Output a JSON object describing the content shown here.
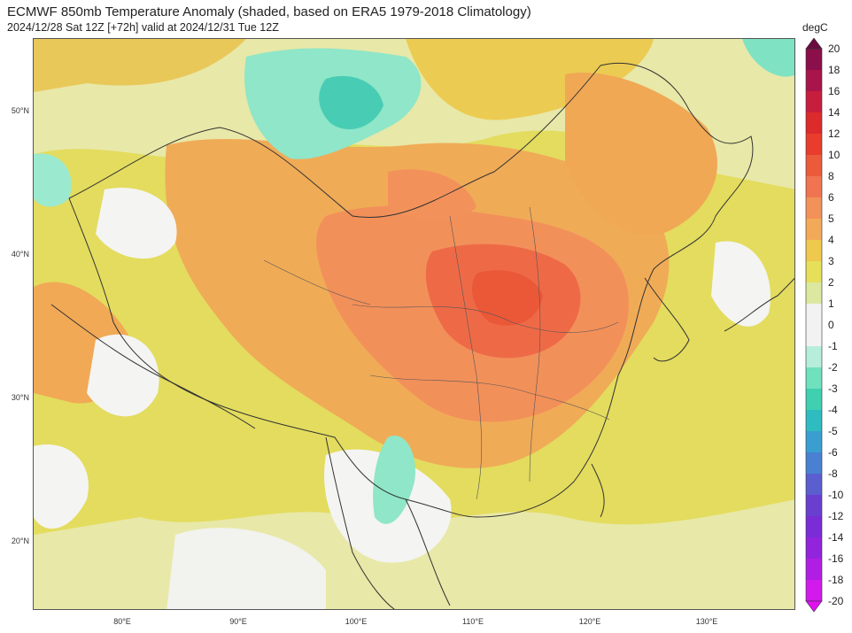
{
  "header": {
    "title": "ECMWF 850mb Temperature Anomaly (shaded, based on ERA5 1979-2018 Climatology)",
    "subtitle": "2024/12/28 Sat 12Z [+72h] valid at 2024/12/31 Tue 12Z"
  },
  "map": {
    "lat_labels": [
      "50°N",
      "40°N",
      "30°N",
      "20°N"
    ],
    "lon_labels": [
      "80°E",
      "90°E",
      "100°E",
      "110°E",
      "120°E",
      "130°E"
    ]
  },
  "colorbar": {
    "unit": "degC",
    "levels": [
      20,
      18,
      16,
      14,
      12,
      10,
      8,
      6,
      5,
      4,
      3,
      2,
      1,
      0,
      -1,
      -2,
      -3,
      -4,
      -5,
      -6,
      -8,
      -10,
      -12,
      -14,
      -16,
      -18,
      -20
    ],
    "colors": [
      "#8a0f4a",
      "#a8154a",
      "#c71e3e",
      "#dd2a2a",
      "#e83d2c",
      "#ec5a3c",
      "#f07452",
      "#f2925a",
      "#f3aa58",
      "#efc84e",
      "#e6df5a",
      "#dce8a0",
      "#f2f2f2",
      "#f2f2f2",
      "#b6eedb",
      "#6fe1bd",
      "#3fd0b0",
      "#2fbcc0",
      "#3a9fd0",
      "#4a80d2",
      "#5a5ecf",
      "#6a3fd0",
      "#7a2cd6",
      "#9224dc",
      "#b01ee4",
      "#d21aec"
    ],
    "labels": [
      "20",
      "18",
      "16",
      "14",
      "12",
      "10",
      "8",
      "6",
      "5",
      "4",
      "3",
      "2",
      "1",
      "0",
      "-1",
      "-2",
      "-3",
      "-4",
      "-5",
      "-6",
      "-8",
      "-10",
      "-12",
      "-14",
      "-16",
      "-18",
      "-20"
    ]
  }
}
